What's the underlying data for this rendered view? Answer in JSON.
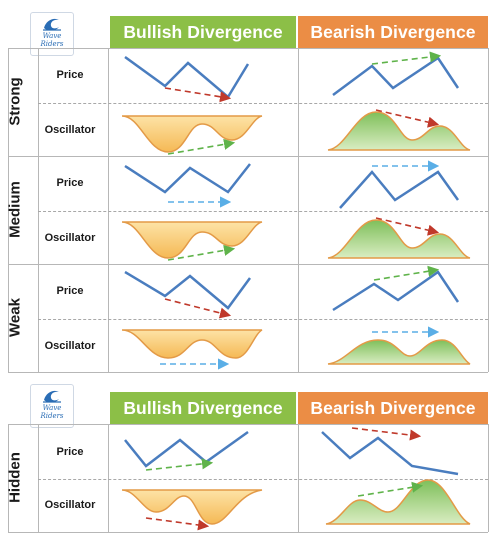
{
  "top": {
    "logo_line1": "Wave",
    "logo_line2": "Riders",
    "header_bullish": "Bullish Divergence",
    "header_bearish": "Bearish Divergence",
    "rows": [
      {
        "label": "Strong",
        "price": "Price",
        "oscillator": "Oscillator"
      },
      {
        "label": "Medium",
        "price": "Price",
        "oscillator": "Oscillator"
      },
      {
        "label": "Weak",
        "price": "Price",
        "oscillator": "Oscillator"
      }
    ]
  },
  "bottom": {
    "logo_line1": "Wave",
    "logo_line2": "Riders",
    "header_bullish": "Bullish Divergence",
    "header_bearish": "Bearish Divergence",
    "rows": [
      {
        "label": "Hidden",
        "price": "Price",
        "oscillator": "Oscillator"
      }
    ]
  },
  "colors": {
    "bullish_header": "#8cbf47",
    "bearish_header": "#eb8d45",
    "price_line": "#4a7dbf",
    "oscillator_low_fill": "#f7c46b",
    "oscillator_high_fill": "#a8d27a",
    "oscillator_stroke": "#e39a47",
    "arrow_green": "#5fb34a",
    "arrow_red": "#c0392b",
    "arrow_blue": "#5aaee6"
  },
  "icons": [
    "wave-logo-icon"
  ]
}
